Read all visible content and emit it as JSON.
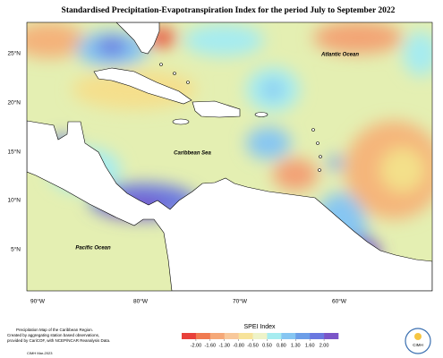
{
  "title": "Standardised Precipitation-Evapotranspiration Index for the period July to September 2022",
  "map": {
    "labels": [
      "Atlantic Ocean",
      "Caribbean Sea",
      "Pacific Ocean"
    ],
    "lat_labels": [
      "25°N",
      "20°N",
      "15°N",
      "10°N",
      "5°N"
    ],
    "lon_labels": [
      "90°W",
      "80°W",
      "70°W",
      "60°W"
    ]
  },
  "legend": {
    "title": "SPEI Index",
    "ticks": [
      {
        "value": -2,
        "label": "-2.00"
      },
      {
        "value": -1.6,
        "label": "-1.60"
      },
      {
        "value": -1.3,
        "label": "-1.30"
      },
      {
        "value": -0.8,
        "label": "-0.80"
      },
      {
        "value": -0.5,
        "label": "-0.50"
      },
      {
        "value": 0.5,
        "label": "0.50"
      },
      {
        "value": 0.8,
        "label": "0.80"
      },
      {
        "value": 1.3,
        "label": "1.30"
      },
      {
        "value": 1.6,
        "label": "1.60"
      },
      {
        "value": 2,
        "label": "2.00"
      }
    ],
    "colors": [
      "#e8403a",
      "#f07a50",
      "#f5a878",
      "#f8c89a",
      "#f7e39a",
      "#eef3c8",
      "#a6ecf0",
      "#86c6f2",
      "#6c9ee8",
      "#6a78e0",
      "#7a55c8"
    ]
  },
  "footer": {
    "note": [
      "Precipitation Map of the Caribbean Region.",
      "Created by aggregating station based observations,",
      "provided by CariCOF, with NCEP/NCAR Reanalysis Data."
    ],
    "credit": "CIMH Mar-2023",
    "logo": "CIMH"
  }
}
